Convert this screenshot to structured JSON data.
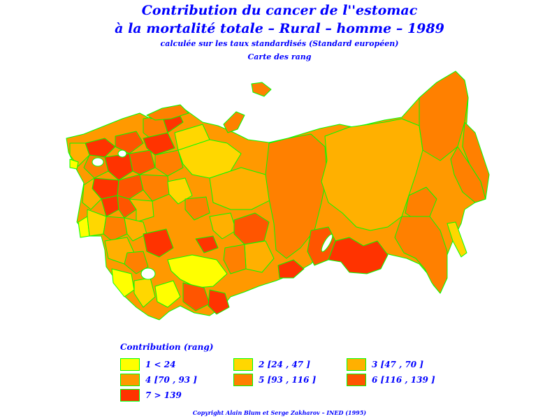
{
  "title": {
    "line1": "Contribution du cancer de l''estomac",
    "line2": "à la mortalité totale – Rural – homme – 1989",
    "line3": "calculée sur les taux standardisés (Standard européen)",
    "line4": "Carte des rang"
  },
  "legend": {
    "title": "Contribution (rang)",
    "items": [
      {
        "label": "1  <  24",
        "color": "#ffff00"
      },
      {
        "label": "2 [24 ,  47 ]",
        "color": "#ffd700"
      },
      {
        "label": "3 [47 ,  70 ]",
        "color": "#ffb000"
      },
      {
        "label": "4 [70 ,  93 ]",
        "color": "#ff9900"
      },
      {
        "label": "5 [93 ,  116 ]",
        "color": "#ff8000"
      },
      {
        "label": "6 [116 ,  139 ]",
        "color": "#ff5500"
      },
      {
        "label": "7  >  139",
        "color": "#ff3300"
      }
    ]
  },
  "colors": {
    "border": "#00ff00",
    "text": "#0000ff"
  },
  "copyright": "Copyright  Alain  Blum  et  Serge  Zakharov  –  INED  (1995)"
}
